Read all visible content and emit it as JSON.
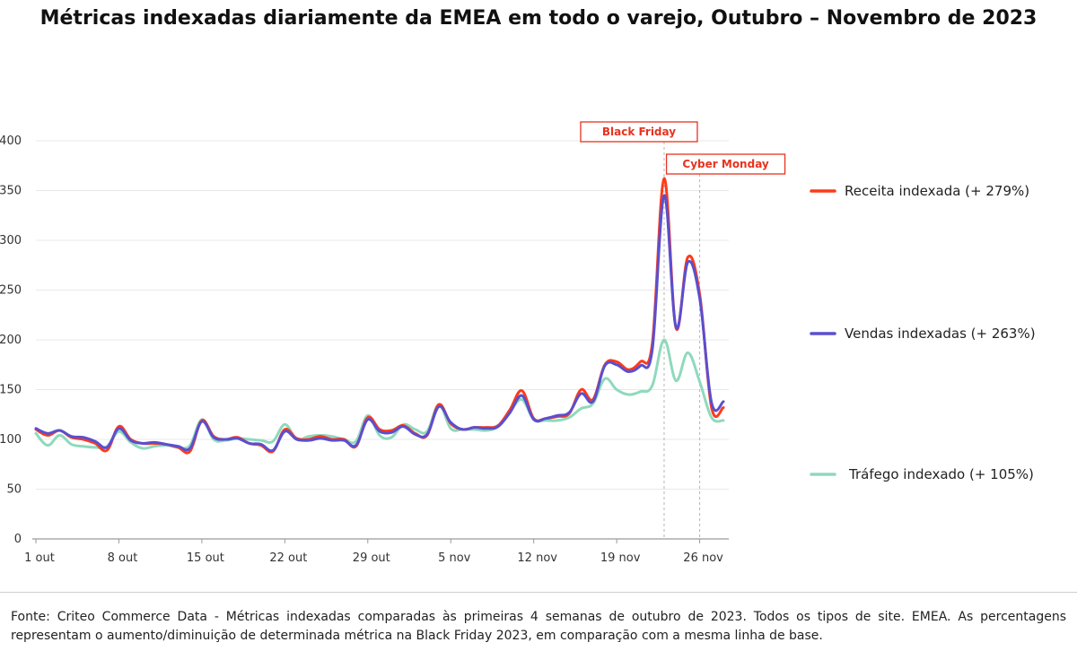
{
  "title": "Métricas indexadas diariamente da EMEA em todo o varejo, Outubro – Novembro de 2023",
  "footer": "Fonte: Criteo Commerce Data - Métricas indexadas comparadas às primeiras 4 semanas de outubro de 2023. Todos os tipos de site. EMEA. As percentagens representam o aumento/diminuição de determinada métrica na Black Friday 2023, em comparação com a mesma linha de base.",
  "colors": {
    "receita": "#ff3a1a",
    "vendas": "#5a4fcf",
    "trafego": "#8fd9bd",
    "annotation": "#e8321e",
    "grid": "#e8e8e8",
    "axis": "#9a9a9a"
  },
  "chart_data": {
    "type": "line",
    "title": "Métricas indexadas diariamente da EMEA em todo o varejo, Outubro – Novembro de 2023",
    "x_ticks": [
      "1 out",
      "8 out",
      "15 out",
      "22 out",
      "29 out",
      "5 nov",
      "12 nov",
      "19 nov",
      "26 nov"
    ],
    "x_tick_days": [
      0,
      7,
      14,
      21,
      28,
      35,
      42,
      49,
      56
    ],
    "ylim": [
      0,
      400
    ],
    "y_ticks": [
      0,
      50,
      100,
      150,
      200,
      250,
      300,
      350,
      400
    ],
    "grid": true,
    "legend_placement": "right",
    "annotations": [
      {
        "label": "Black Friday",
        "day": 53
      },
      {
        "label": "Cyber Monday",
        "day": 56
      }
    ],
    "series": [
      {
        "key": "receita",
        "name": "Receita indexada (+ 279%)",
        "values": [
          110,
          104,
          109,
          102,
          100,
          96,
          89,
          113,
          100,
          96,
          96,
          95,
          92,
          88,
          119,
          103,
          100,
          102,
          96,
          94,
          88,
          110,
          101,
          100,
          103,
          100,
          100,
          93,
          122,
          110,
          109,
          114,
          106,
          104,
          135,
          116,
          110,
          112,
          112,
          114,
          130,
          149,
          121,
          121,
          123,
          126,
          150,
          140,
          175,
          178,
          170,
          178,
          196,
          362,
          212,
          283,
          246,
          132,
          132
        ]
      },
      {
        "key": "vendas",
        "name": "Vendas indexadas (+ 263%)",
        "values": [
          111,
          106,
          109,
          103,
          102,
          98,
          92,
          111,
          99,
          96,
          97,
          95,
          93,
          91,
          118,
          102,
          100,
          101,
          96,
          95,
          89,
          108,
          100,
          99,
          101,
          99,
          99,
          94,
          120,
          108,
          107,
          113,
          105,
          105,
          133,
          117,
          110,
          112,
          111,
          113,
          127,
          144,
          120,
          121,
          124,
          127,
          146,
          138,
          174,
          175,
          168,
          174,
          190,
          345,
          213,
          278,
          242,
          137,
          138
        ]
      },
      {
        "key": "trafego",
        "name": "Tráfego indexado (+ 105%)",
        "values": [
          106,
          94,
          104,
          95,
          93,
          92,
          93,
          108,
          97,
          91,
          93,
          94,
          92,
          94,
          120,
          100,
          99,
          101,
          100,
          99,
          98,
          115,
          100,
          103,
          104,
          103,
          100,
          98,
          124,
          104,
          102,
          115,
          110,
          108,
          135,
          111,
          110,
          110,
          109,
          113,
          128,
          140,
          120,
          119,
          119,
          122,
          131,
          136,
          161,
          150,
          145,
          148,
          154,
          200,
          159,
          187,
          158,
          122,
          119
        ]
      }
    ]
  }
}
